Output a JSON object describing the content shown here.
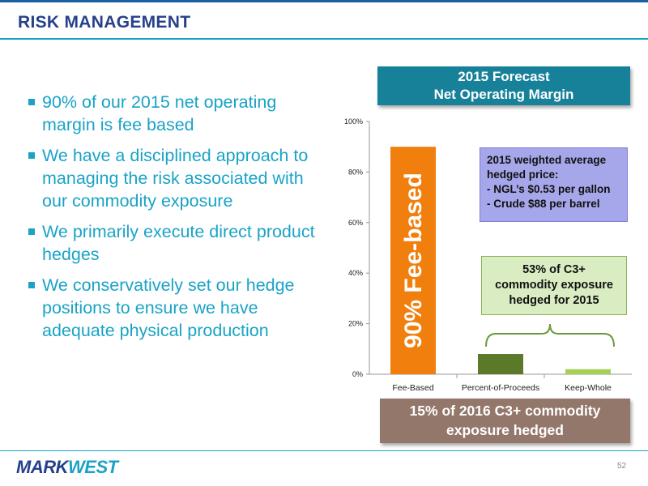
{
  "header": {
    "title": "RISK MANAGEMENT"
  },
  "bullets": [
    "90% of our 2015 net operating margin is fee based",
    "We have a disciplined approach to managing the risk associated with our commodity exposure",
    "We primarily execute direct product hedges",
    "We conservatively set our hedge positions to ensure we have adequate physical production"
  ],
  "forecast_box": {
    "line1": "2015 Forecast",
    "line2": "Net Operating Margin"
  },
  "hedge_box": {
    "line1": "2015 weighted average",
    "line2": "hedged price:",
    "line3": "- NGL’s $0.53 per gallon",
    "line4": "- Crude $88 per barrel"
  },
  "exposure_box": {
    "line1": "53% of C3+",
    "line2": "commodity exposure",
    "line3": "hedged for 2015"
  },
  "footer_box": {
    "line1": "15% of 2016 C3+ commodity",
    "line2": "exposure hedged"
  },
  "logo": {
    "text": "MARKWEST",
    "part1": "MARK",
    "part2": "WEST"
  },
  "page_number": "52",
  "colors": {
    "title": "#27408b",
    "accent": "#1aa3c7",
    "fee_bar": "#f07f0e",
    "poc_bar": "#5a7a2a",
    "kw_bar": "#a7cf5a"
  },
  "chart_data": {
    "type": "bar",
    "categories": [
      "Fee-Based",
      "Percent-of-Proceeds",
      "Keep-Whole"
    ],
    "values": [
      90,
      8,
      2
    ],
    "bar_colors": [
      "#f07f0e",
      "#5a7a2a",
      "#a7cf5a"
    ],
    "bar_label": "90% Fee-based",
    "yticks": [
      "0%",
      "20%",
      "40%",
      "60%",
      "80%",
      "100%"
    ],
    "ylim": [
      0,
      100
    ],
    "grid": false
  }
}
